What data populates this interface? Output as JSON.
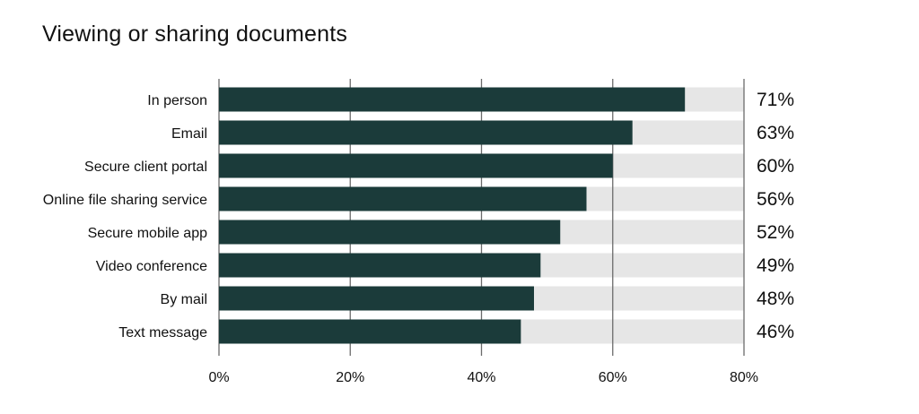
{
  "chart_data": {
    "type": "bar",
    "orientation": "horizontal",
    "title": "Viewing or sharing documents",
    "xlabel": "",
    "ylabel": "",
    "categories": [
      "In person",
      "Email",
      "Secure client portal",
      "Online file sharing service",
      "Secure mobile app",
      "Video conference",
      "By mail",
      "Text message"
    ],
    "values": [
      71,
      63,
      60,
      56,
      52,
      49,
      48,
      46
    ],
    "value_labels": [
      "71%",
      "63%",
      "60%",
      "56%",
      "52%",
      "49%",
      "48%",
      "46%"
    ],
    "xlim": [
      0,
      80
    ],
    "ticks": [
      0,
      20,
      40,
      60,
      80
    ],
    "tick_labels": [
      "0%",
      "20%",
      "40%",
      "60%",
      "80%"
    ],
    "grid": true,
    "legend": "none",
    "colors": {
      "bar": "#1b3b3a",
      "track": "#e6e6e6",
      "grid": "#6b6b6b",
      "text": "#111111"
    }
  }
}
